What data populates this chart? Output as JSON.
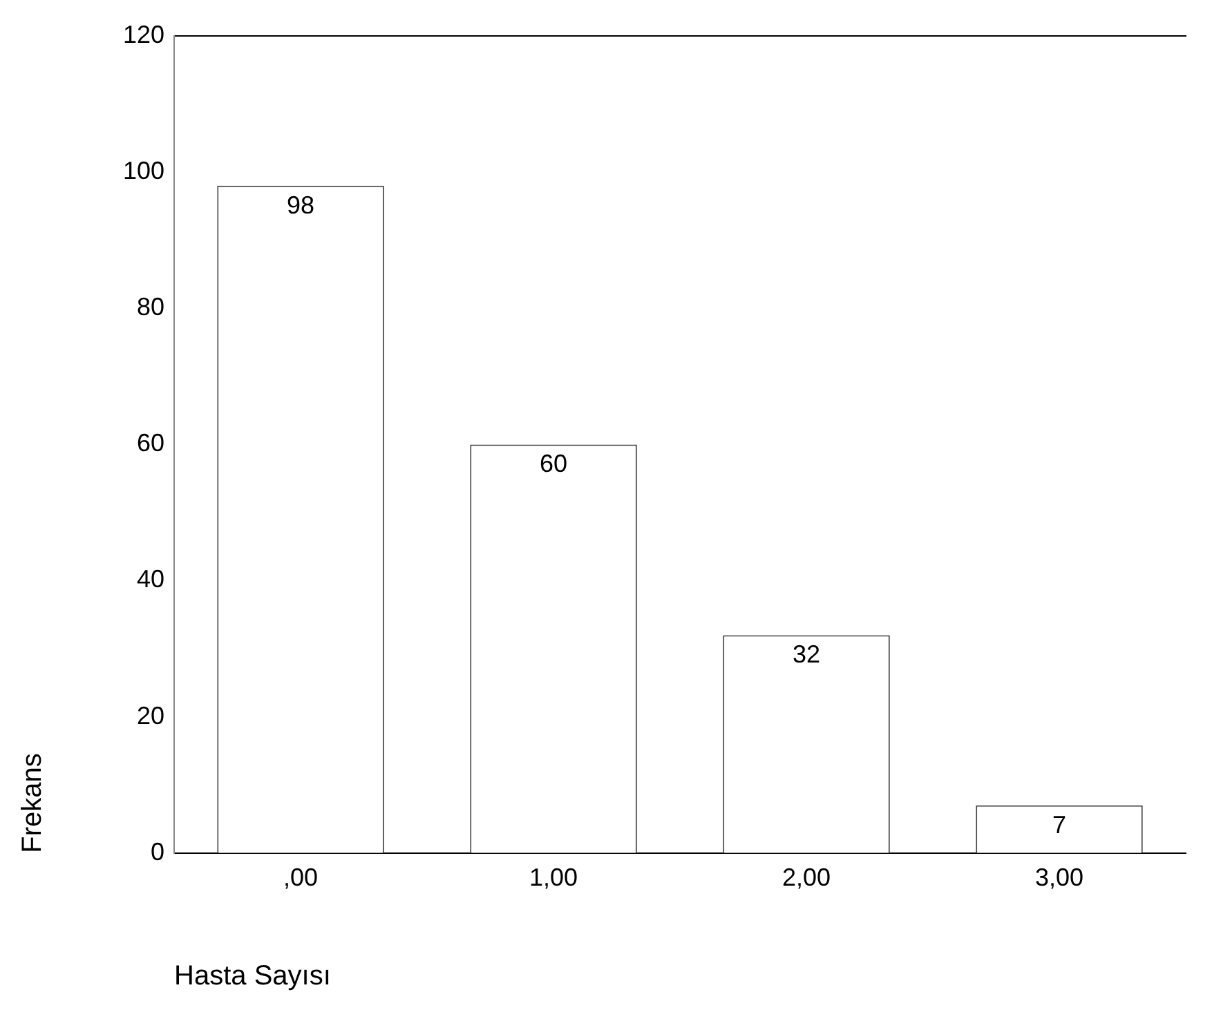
{
  "chart_data": {
    "type": "bar",
    "xlabel": "Hasta Sayısı",
    "ylabel": "Frekans",
    "categories": [
      ",00",
      "1,00",
      "2,00",
      "3,00"
    ],
    "values": [
      98,
      60,
      32,
      7
    ],
    "color": "#ffffff",
    "data_labels": true,
    "ylim": [
      0,
      120
    ],
    "yticks": [
      0,
      20,
      40,
      60,
      80,
      100,
      120
    ],
    "grid": false,
    "legend": false
  }
}
